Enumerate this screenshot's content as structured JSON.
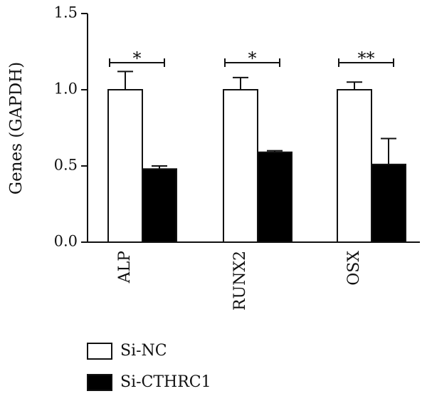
{
  "chart_data": {
    "type": "bar",
    "categories": [
      "ALP",
      "RUNX2",
      "OSX"
    ],
    "series": [
      {
        "name": "Si-NC",
        "values": [
          1.0,
          1.0,
          1.0
        ],
        "errors": [
          0.12,
          0.08,
          0.05
        ],
        "color": "#ffffff"
      },
      {
        "name": "Si-CTHRC1",
        "values": [
          0.48,
          0.59,
          0.51
        ],
        "errors": [
          0.02,
          0.01,
          0.17
        ],
        "color": "#000000"
      }
    ],
    "significance": [
      "*",
      "*",
      "**"
    ],
    "ylabel": "Genes (GAPDH)",
    "xlabel": "",
    "title": "",
    "ylim": [
      0,
      1.5
    ],
    "yticks": [
      0,
      0.5,
      1.0,
      1.5
    ],
    "ytick_labels": [
      "0.0",
      "0.5",
      "1.0",
      "1.5"
    ],
    "grid": false,
    "legend_position": "bottom-left"
  }
}
